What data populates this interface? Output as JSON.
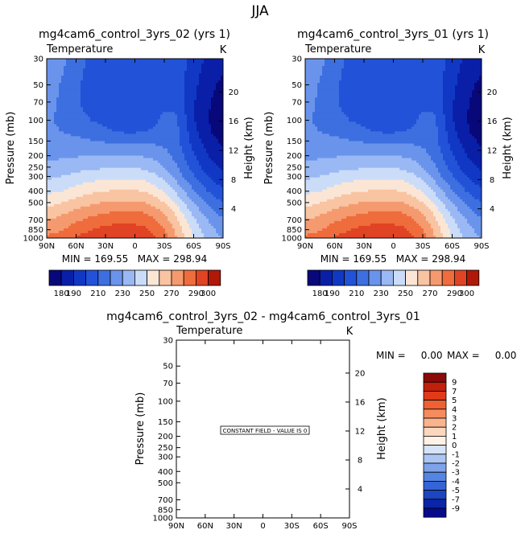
{
  "figure": {
    "title": "JJA"
  },
  "panels": [
    {
      "id": "p1",
      "title": "mg4cam6_control_3yrs_02 (yrs 1)",
      "variable": "Temperature",
      "units": "K",
      "ylabel": "Pressure (mb)",
      "ylabel_right": "Height (km)",
      "stats": "MIN = 169.55   MAX = 298.94",
      "min": 169.55,
      "max": 298.94
    },
    {
      "id": "p2",
      "title": "mg4cam6_control_3yrs_01 (yrs 1)",
      "variable": "Temperature",
      "units": "K",
      "ylabel": "Pressure (mb)",
      "ylabel_right": "Height (km)",
      "stats": "MIN = 169.55   MAX = 298.94",
      "min": 169.55,
      "max": 298.94
    },
    {
      "id": "p3",
      "title": "mg4cam6_control_3yrs_02 - mg4cam6_control_3yrs_01",
      "variable": "Temperature",
      "units": "K",
      "ylabel": "Pressure (mb)",
      "ylabel_right": "Height (km)",
      "stats_min": "MIN =     0.00",
      "stats_max": "MAX =     0.00",
      "annotation": "CONSTANT FIELD - VALUE IS 0",
      "min": 0.0,
      "max": 0.0
    }
  ],
  "chart_data": {
    "type": "heatmap",
    "x_ticks": [
      "90N",
      "60N",
      "30N",
      "0",
      "30S",
      "60S",
      "90S"
    ],
    "x_values": [
      90,
      60,
      30,
      0,
      -30,
      -60,
      -90
    ],
    "pressure_ticks": [
      "30",
      "50",
      "70",
      "100",
      "150",
      "200",
      "250",
      "300",
      "400",
      "500",
      "700",
      "850",
      "1000"
    ],
    "pressure_values": [
      30,
      50,
      70,
      100,
      150,
      200,
      250,
      300,
      400,
      500,
      700,
      850,
      1000
    ],
    "ylim_mb": [
      30,
      1000
    ],
    "height_ticks_km": [
      "4",
      "8",
      "12",
      "16",
      "20"
    ],
    "height_values_km": [
      4,
      8,
      12,
      16,
      20
    ],
    "colorbar_abs": {
      "levels": [
        180,
        190,
        200,
        210,
        220,
        230,
        240,
        250,
        260,
        270,
        280,
        290,
        300
      ],
      "labels": [
        "180",
        "190",
        "210",
        "230",
        "250",
        "270",
        "290",
        "300"
      ],
      "label_values": [
        180,
        190,
        210,
        230,
        250,
        270,
        290,
        300
      ],
      "colors": [
        "#08087a",
        "#0a1fa8",
        "#1138c4",
        "#2252d8",
        "#3d6fe0",
        "#6a94ec",
        "#9ab8f3",
        "#cadcf8",
        "#fbe6d6",
        "#f9c4a2",
        "#f59a6f",
        "#ef6c3c",
        "#e04424",
        "#b01808"
      ]
    },
    "colorbar_diff": {
      "labels": [
        "9",
        "7",
        "5",
        "4",
        "3",
        "2",
        "1",
        "0",
        "-1",
        "-2",
        "-3",
        "-4",
        "-5",
        "-7",
        "-9"
      ],
      "colors": [
        "#8a0a0a",
        "#c0200c",
        "#e03a18",
        "#ef6033",
        "#f58c5e",
        "#f9b48e",
        "#fcd7bf",
        "#fff2e6",
        "#d6e4fb",
        "#acc6f3",
        "#7fa3ea",
        "#5585e3",
        "#3564d6",
        "#1c45c2",
        "#0b25a8",
        "#070a8a"
      ]
    },
    "temperature_field": {
      "note": "Zonal-mean temperature (K) approximated from the contour fill; rows are pressure levels (mb), columns are latitudes (deg, 90N to 90S).",
      "lat": [
        90,
        80,
        70,
        60,
        50,
        40,
        30,
        20,
        10,
        0,
        -10,
        -20,
        -30,
        -40,
        -50,
        -60,
        -70,
        -80,
        -90
      ],
      "plev": [
        30,
        40,
        50,
        70,
        100,
        125,
        150,
        200,
        250,
        300,
        400,
        500,
        600,
        700,
        850,
        1000
      ],
      "values": [
        [
          230,
          226,
          220,
          214,
          210,
          209,
          208,
          208,
          208,
          208,
          208,
          208,
          208,
          207,
          203,
          196,
          190,
          185,
          182
        ],
        [
          228,
          224,
          218,
          213,
          209,
          208,
          207,
          207,
          207,
          207,
          207,
          207,
          207,
          206,
          201,
          194,
          188,
          183,
          180
        ],
        [
          226,
          222,
          216,
          212,
          208,
          207,
          206,
          206,
          206,
          206,
          206,
          206,
          206,
          205,
          200,
          193,
          186,
          181,
          178
        ],
        [
          224,
          220,
          215,
          211,
          208,
          207,
          206,
          206,
          206,
          206,
          206,
          206,
          207,
          206,
          200,
          191,
          184,
          179,
          176
        ],
        [
          222,
          219,
          216,
          214,
          211,
          209,
          207,
          205,
          204,
          204,
          205,
          208,
          213,
          214,
          203,
          191,
          183,
          177,
          173
        ],
        [
          223,
          221,
          219,
          218,
          216,
          214,
          212,
          210,
          209,
          209,
          210,
          212,
          215,
          215,
          205,
          193,
          185,
          179,
          175
        ],
        [
          225,
          224,
          223,
          222,
          221,
          220,
          219,
          218,
          218,
          218,
          218,
          218,
          217,
          214,
          206,
          196,
          188,
          182,
          178
        ],
        [
          228,
          228,
          229,
          229,
          230,
          230,
          230,
          230,
          230,
          230,
          229,
          227,
          224,
          218,
          210,
          201,
          193,
          187,
          183
        ],
        [
          233,
          233,
          235,
          236,
          237,
          238,
          239,
          239,
          239,
          239,
          238,
          235,
          230,
          223,
          214,
          206,
          198,
          192,
          188
        ],
        [
          238,
          239,
          241,
          243,
          245,
          246,
          247,
          247,
          247,
          247,
          246,
          242,
          237,
          229,
          219,
          211,
          203,
          197,
          193
        ],
        [
          248,
          249,
          251,
          254,
          257,
          259,
          260,
          261,
          261,
          261,
          259,
          255,
          249,
          240,
          230,
          221,
          213,
          206,
          202
        ],
        [
          257,
          258,
          261,
          264,
          267,
          269,
          271,
          272,
          272,
          272,
          270,
          266,
          260,
          251,
          240,
          230,
          222,
          215,
          210
        ],
        [
          264,
          266,
          269,
          272,
          275,
          277,
          279,
          280,
          281,
          281,
          279,
          275,
          268,
          259,
          247,
          237,
          228,
          221,
          216
        ],
        [
          270,
          272,
          275,
          278,
          281,
          284,
          286,
          287,
          288,
          287,
          285,
          281,
          274,
          265,
          253,
          242,
          233,
          226,
          221
        ],
        [
          276,
          278,
          281,
          285,
          288,
          291,
          293,
          294,
          295,
          294,
          292,
          287,
          280,
          270,
          258,
          247,
          238,
          231,
          226
        ],
        [
          282,
          284,
          287,
          291,
          294,
          296,
          298,
          299,
          299,
          298,
          296,
          291,
          284,
          274,
          262,
          250,
          241,
          234,
          229
        ]
      ]
    },
    "difference_field": {
      "constant_value": 0
    }
  }
}
